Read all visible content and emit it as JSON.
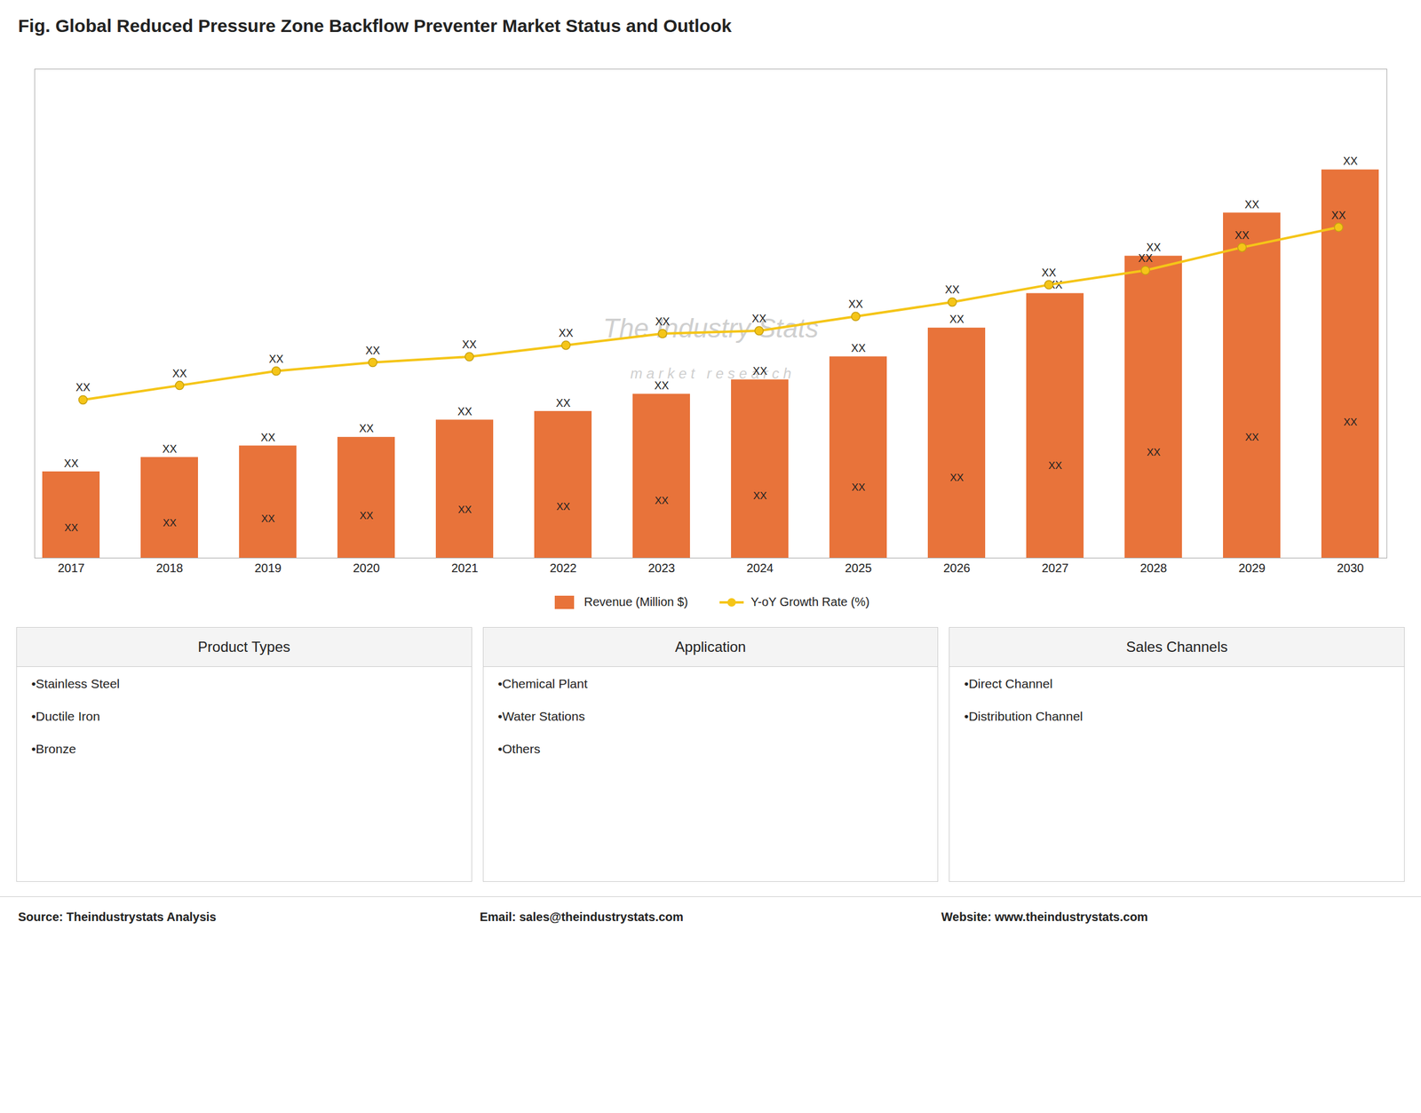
{
  "chart_data": {
    "type": "bar",
    "title": "Fig. Global Reduced Pressure Zone Backflow Preventer Market Status and Outlook",
    "categories": [
      "2017",
      "2018",
      "2019",
      "2020",
      "2021",
      "2022",
      "2023",
      "2024",
      "2025",
      "2026",
      "2027",
      "2028",
      "2029",
      "2030"
    ],
    "series": [
      {
        "name": "Revenue (Million $)",
        "type": "bar",
        "color": "#e8733a",
        "values": [
          3.0,
          3.5,
          3.9,
          4.2,
          4.8,
          5.1,
          5.7,
          6.2,
          7.0,
          8.0,
          9.2,
          10.5,
          12.0,
          13.5
        ],
        "value_labels": [
          "XX",
          "XX",
          "XX",
          "XX",
          "XX",
          "XX",
          "XX",
          "XX",
          "XX",
          "XX",
          "XX",
          "XX",
          "XX",
          "XX"
        ],
        "inner_labels": [
          "XX",
          "XX",
          "XX",
          "XX",
          "XX",
          "XX",
          "XX",
          "XX",
          "XX",
          "XX",
          "XX",
          "XX",
          "XX",
          "XX"
        ]
      },
      {
        "name": "Y-oY Growth Rate (%)",
        "type": "line",
        "color": "#f5c518",
        "marker": "circle",
        "axis": "y2",
        "values": [
          5.5,
          6.0,
          6.5,
          6.8,
          7.0,
          7.4,
          7.8,
          7.9,
          8.4,
          8.9,
          9.5,
          10.0,
          10.8,
          11.5
        ],
        "value_labels": [
          "XX",
          "XX",
          "XX",
          "XX",
          "XX",
          "XX",
          "XX",
          "XX",
          "XX",
          "XX",
          "XX",
          "XX",
          "XX",
          "XX"
        ]
      }
    ],
    "ylim": [
      0,
      17
    ],
    "yticks": [],
    "y2lim": [
      0,
      17
    ],
    "y2ticks": [],
    "grid": false,
    "legend": "bottom",
    "tick_labels": "x",
    "watermark": [
      "The Industry Stats",
      "m a r k e t   r e s e a r c h"
    ],
    "panels": [
      {
        "title": "Product Types",
        "items": [
          "•Stainless Steel",
          "•Ductile Iron",
          "•Bronze"
        ]
      },
      {
        "title": "Application",
        "items": [
          "•Chemical Plant",
          "•Water Stations",
          "•Others"
        ]
      },
      {
        "title": "Sales Channels",
        "items": [
          "•Direct Channel",
          "•Distribution Channel"
        ]
      }
    ],
    "footer": [
      "Source: Theindustrystats Analysis",
      "Email: sales@theindustrystats.com",
      "Website: www.theindustrystats.com"
    ]
  }
}
